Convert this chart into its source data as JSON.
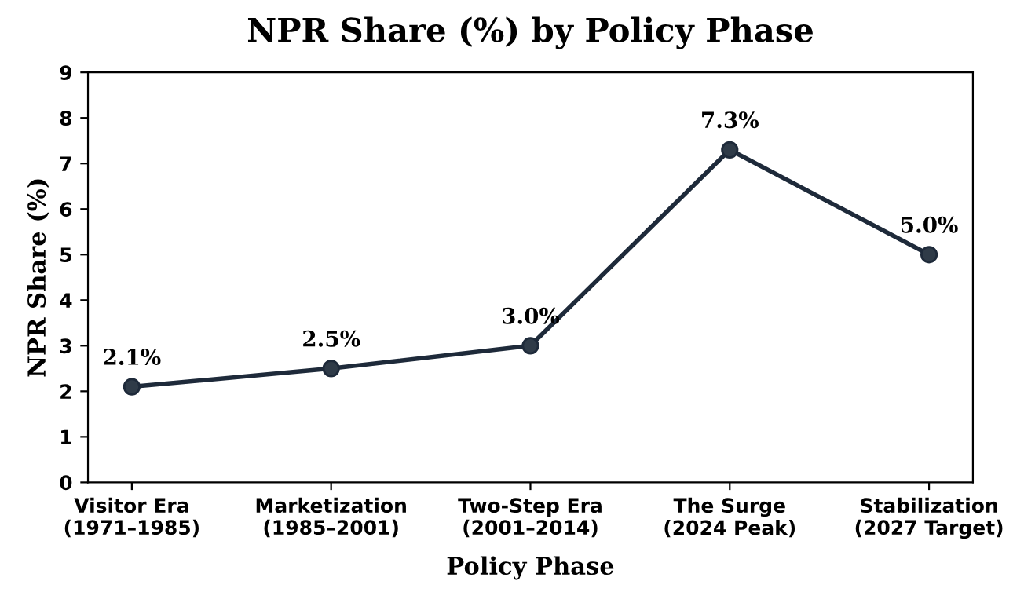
{
  "chart_data": {
    "type": "line",
    "title": "NPR Share (%) by Policy Phase",
    "xlabel": "Policy Phase",
    "ylabel": "NPR Share (%)",
    "categories": [
      "Visitor Era\n(1971–1985)",
      "Marketization\n(1985–2001)",
      "Two-Step Era\n(2001–2014)",
      "The Surge\n(2024 Peak)",
      "Stabilization\n(2027 Target)"
    ],
    "series": [
      {
        "color": "#1e2a3a",
        "values": [
          2.1,
          2.5,
          3.0,
          7.3,
          5.0
        ],
        "value_labels": [
          "2.1%",
          "2.5%",
          "3.0%",
          "7.3%",
          "5.0%"
        ]
      }
    ],
    "ylim": [
      0,
      9
    ],
    "yticks": [
      0,
      1,
      2,
      3,
      4,
      5,
      6,
      7,
      8,
      9
    ],
    "marker": "circle",
    "line_style": "solid",
    "grid": false,
    "legend": false
  }
}
